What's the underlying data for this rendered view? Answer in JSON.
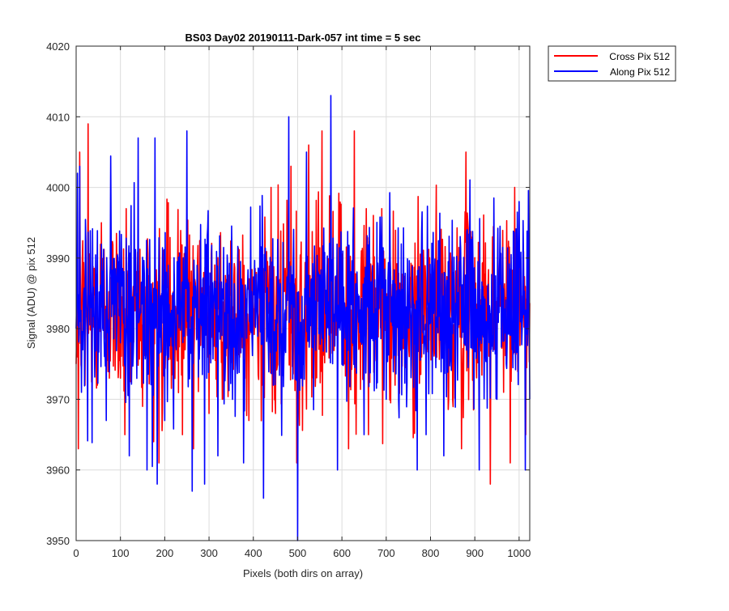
{
  "chart_data": {
    "type": "line",
    "title": "BS03 Day02 20190111-Dark-057 int time = 5 sec",
    "xlabel": "Pixels (both dirs on array)",
    "ylabel": "Signal (ADU) @ pix 512",
    "xlim": [
      0,
      1024
    ],
    "ylim": [
      3950,
      4020
    ],
    "xticks": [
      0,
      100,
      200,
      300,
      400,
      500,
      600,
      700,
      800,
      900,
      1000
    ],
    "yticks": [
      3950,
      3960,
      3970,
      3980,
      3990,
      4000,
      4010,
      4020
    ],
    "grid": true,
    "legend_position": "outside-top-right",
    "series": [
      {
        "name": "Cross Pix 512",
        "color": "#ff0000",
        "mean": 3983,
        "noise_range": [
          3958,
          4009
        ],
        "points": [
          [
            0,
            3975
          ],
          [
            5,
            3963
          ],
          [
            8,
            4005
          ],
          [
            14,
            3990
          ],
          [
            20,
            3972
          ],
          [
            27,
            4009
          ],
          [
            36,
            3978
          ],
          [
            48,
            3972
          ],
          [
            57,
            3995
          ],
          [
            100,
            3973
          ],
          [
            110,
            3965
          ],
          [
            113,
            3997
          ],
          [
            150,
            3969
          ],
          [
            175,
            3964
          ],
          [
            187,
            3961
          ],
          [
            220,
            3970
          ],
          [
            240,
            3965
          ],
          [
            265,
            3963
          ],
          [
            300,
            3968
          ],
          [
            330,
            3970
          ],
          [
            390,
            3967
          ],
          [
            420,
            3972
          ],
          [
            440,
            4000
          ],
          [
            450,
            3968
          ],
          [
            485,
            4003
          ],
          [
            498,
            3961
          ],
          [
            525,
            4006
          ],
          [
            555,
            4008
          ],
          [
            605,
            3975
          ],
          [
            615,
            3963
          ],
          [
            628,
            4008
          ],
          [
            655,
            3997
          ],
          [
            660,
            3965
          ],
          [
            690,
            3997
          ],
          [
            720,
            3972
          ],
          [
            780,
            3976
          ],
          [
            850,
            3970
          ],
          [
            870,
            3963
          ],
          [
            880,
            4005
          ],
          [
            935,
            3958
          ],
          [
            940,
            3993
          ],
          [
            965,
            3971
          ],
          [
            980,
            3961
          ],
          [
            990,
            4000
          ],
          [
            1000,
            3993
          ],
          [
            1015,
            3965
          ],
          [
            1020,
            3985
          ]
        ]
      },
      {
        "name": "Along Pix 512",
        "color": "#0000ff",
        "mean": 3983,
        "noise_range": [
          3950,
          4013
        ],
        "points": [
          [
            0,
            3980
          ],
          [
            3,
            4002
          ],
          [
            8,
            4003
          ],
          [
            12,
            3971
          ],
          [
            68,
            3967
          ],
          [
            100,
            3978
          ],
          [
            120,
            3962
          ],
          [
            140,
            4007
          ],
          [
            160,
            3960
          ],
          [
            178,
            4007
          ],
          [
            183,
            3958
          ],
          [
            200,
            3967
          ],
          [
            250,
            4008
          ],
          [
            262,
            3957
          ],
          [
            290,
            3958
          ],
          [
            320,
            3962
          ],
          [
            378,
            3961
          ],
          [
            423,
            3956
          ],
          [
            445,
            3972
          ],
          [
            480,
            4010
          ],
          [
            500,
            3950
          ],
          [
            520,
            4005
          ],
          [
            575,
            4013
          ],
          [
            590,
            3960
          ],
          [
            650,
            3965
          ],
          [
            700,
            3970
          ],
          [
            770,
            3960
          ],
          [
            790,
            3965
          ],
          [
            830,
            3962
          ],
          [
            880,
            3983
          ],
          [
            910,
            3960
          ],
          [
            950,
            3970
          ],
          [
            1000,
            3998
          ],
          [
            1014,
            3960
          ],
          [
            1024,
            3970
          ]
        ]
      }
    ]
  }
}
